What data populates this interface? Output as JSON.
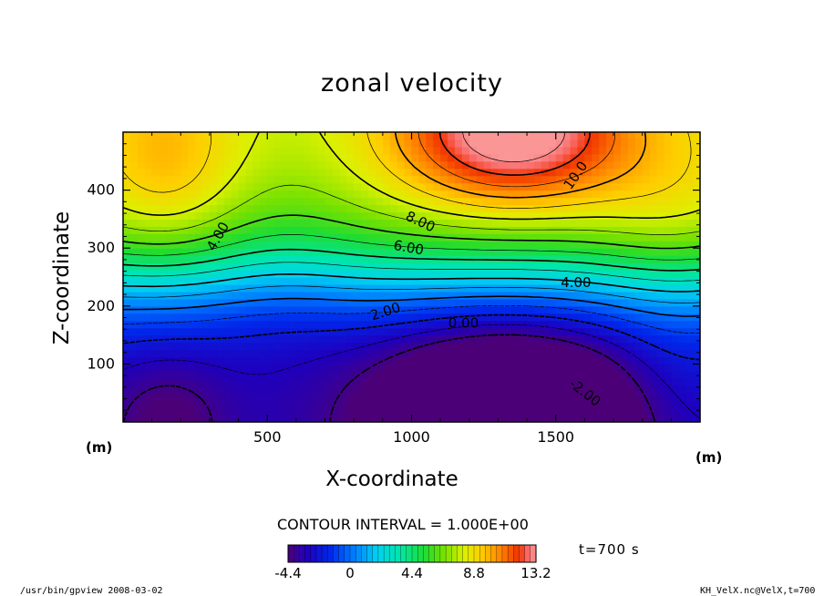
{
  "chart_data": {
    "type": "heatmap",
    "title": "zonal velocity",
    "xlabel": "X-coordinate",
    "ylabel": "Z-coordinate",
    "x_unit": "(m)",
    "y_unit": "(m)",
    "xlim": [
      0,
      2000
    ],
    "ylim": [
      0,
      500
    ],
    "xticks": [
      500,
      1000,
      1500
    ],
    "yticks": [
      100,
      200,
      300,
      400
    ],
    "contour_interval_label": "CONTOUR INTERVAL = 1.000E+00",
    "contour_labels": [
      "10.0",
      "8.00",
      "6.00",
      "4.00",
      "4.00",
      "2.00",
      "0.00",
      "-2.00"
    ],
    "colorbar": {
      "min": -4.4,
      "max": 13.2,
      "tick_labels": [
        "-4.4",
        "0",
        "4.4",
        "8.8",
        "13.2"
      ],
      "tick_values": [
        -4.4,
        0,
        4.4,
        8.8,
        13.2
      ]
    },
    "field_features": {
      "max_value": 13.2,
      "max_location": [
        1350,
        480
      ],
      "min_value": -4.4,
      "min_location": [
        1350,
        5
      ]
    }
  },
  "annotations": {
    "time": "t=700  s",
    "footer_left": "/usr/bin/gpview   2008-03-02",
    "footer_right": "KH_VelX.nc@VelX,t=700"
  },
  "colors": {
    "background": "#ffffff",
    "axis": "#000000"
  }
}
